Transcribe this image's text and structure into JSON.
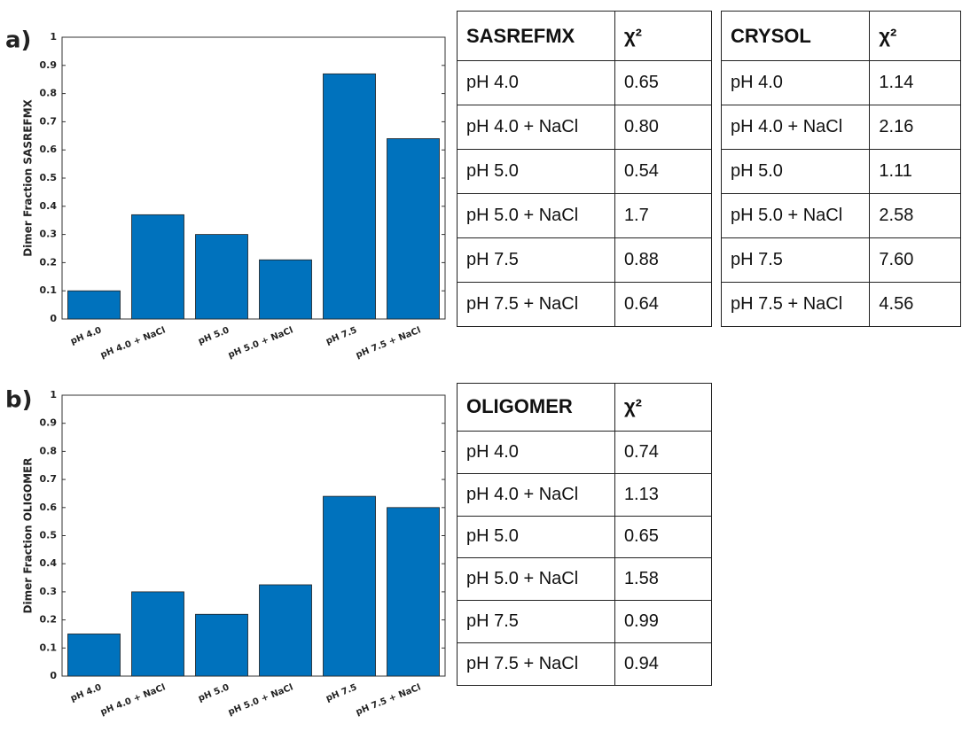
{
  "panels": [
    "a)",
    "b)"
  ],
  "chart_data": [
    {
      "type": "bar",
      "ylabel": "Dimer Fraction SASREFMX",
      "categories": [
        "pH 4.0",
        "pH 4.0 + NaCl",
        "pH 5.0",
        "pH 5.0 + NaCl",
        "pH 7.5",
        "pH 7.5 + NaCl"
      ],
      "values": [
        0.1,
        0.37,
        0.3,
        0.21,
        0.87,
        0.64
      ],
      "color": "#0072bd",
      "ylim": [
        0,
        1
      ],
      "yticks": [
        0,
        0.1,
        0.2,
        0.3,
        0.4,
        0.5,
        0.6,
        0.7,
        0.8,
        0.9,
        1
      ],
      "grid": false
    },
    {
      "type": "bar",
      "ylabel": "Dimer Fraction OLIGOMER",
      "categories": [
        "pH 4.0",
        "pH 4.0 + NaCl",
        "pH 5.0",
        "pH 5.0 + NaCl",
        "pH 7.5",
        "pH 7.5 + NaCl"
      ],
      "values": [
        0.15,
        0.3,
        0.22,
        0.325,
        0.64,
        0.6
      ],
      "color": "#0072bd",
      "ylim": [
        0,
        1
      ],
      "yticks": [
        0,
        0.1,
        0.2,
        0.3,
        0.4,
        0.5,
        0.6,
        0.7,
        0.8,
        0.9,
        1
      ],
      "grid": false
    }
  ],
  "tables": [
    {
      "header": [
        "SASREFMX",
        "χ²"
      ],
      "rows": [
        [
          "pH 4.0",
          "0.65"
        ],
        [
          "pH 4.0 + NaCl",
          "0.80"
        ],
        [
          "pH 5.0",
          "0.54"
        ],
        [
          "pH 5.0 + NaCl",
          "1.7"
        ],
        [
          "pH 7.5",
          "0.88"
        ],
        [
          "pH 7.5 + NaCl",
          "0.64"
        ]
      ]
    },
    {
      "header": [
        "CRYSOL",
        "χ²"
      ],
      "rows": [
        [
          "pH 4.0",
          "1.14"
        ],
        [
          "pH 4.0 + NaCl",
          "2.16"
        ],
        [
          "pH 5.0",
          "1.11"
        ],
        [
          "pH 5.0 + NaCl",
          "2.58"
        ],
        [
          "pH 7.5",
          "7.60"
        ],
        [
          "pH 7.5 + NaCl",
          "4.56"
        ]
      ]
    },
    {
      "header": [
        "OLIGOMER",
        "χ²"
      ],
      "rows": [
        [
          "pH 4.0",
          "0.74"
        ],
        [
          "pH 4.0 + NaCl",
          "1.13"
        ],
        [
          "pH 5.0",
          "0.65"
        ],
        [
          "pH 5.0 + NaCl",
          "1.58"
        ],
        [
          "pH 7.5",
          "0.99"
        ],
        [
          "pH 7.5 + NaCl",
          "0.94"
        ]
      ]
    }
  ]
}
